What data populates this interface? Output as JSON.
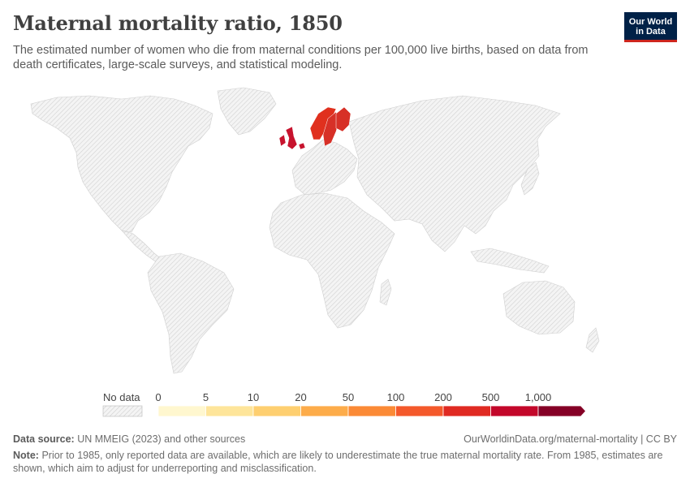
{
  "header": {
    "title": "Maternal mortality ratio, 1850",
    "subtitle": "The estimated number of women who die from maternal conditions per 100,000 live births, based on data from death certificates, large-scale surveys, and statistical modeling.",
    "logo_line1": "Our World",
    "logo_line2": "in Data"
  },
  "map": {
    "no_data_color": "#e6e6e6",
    "countries_with_data": [
      {
        "name": "Sweden",
        "color": "#d73027"
      },
      {
        "name": "Finland",
        "color": "#d73027"
      },
      {
        "name": "Norway",
        "color": "#e0301e"
      },
      {
        "name": "United Kingdom",
        "color": "#c7132e"
      },
      {
        "name": "Netherlands",
        "color": "#c7132e"
      }
    ]
  },
  "legend": {
    "no_data_label": "No data",
    "bins": [
      {
        "label": "0",
        "color": "#fff7cf"
      },
      {
        "label": "5",
        "color": "#fee59a"
      },
      {
        "label": "10",
        "color": "#fecf70"
      },
      {
        "label": "20",
        "color": "#fdac4a"
      },
      {
        "label": "50",
        "color": "#fb8a36"
      },
      {
        "label": "100",
        "color": "#f4592b"
      },
      {
        "label": "200",
        "color": "#e02a22"
      },
      {
        "label": "500",
        "color": "#c3072a"
      },
      {
        "label": "1,000",
        "color": "#850026"
      }
    ]
  },
  "footer": {
    "source_label": "Data source:",
    "source_text": "UN MMEIG (2023) and other sources",
    "url": "OurWorldinData.org/maternal-mortality | CC BY",
    "note_label": "Note:",
    "note_text": "Prior to 1985, only reported data are available, which are likely to underestimate the true maternal mortality rate. From 1985, estimates are shown, which aim to adjust for underreporting and misclassification."
  }
}
